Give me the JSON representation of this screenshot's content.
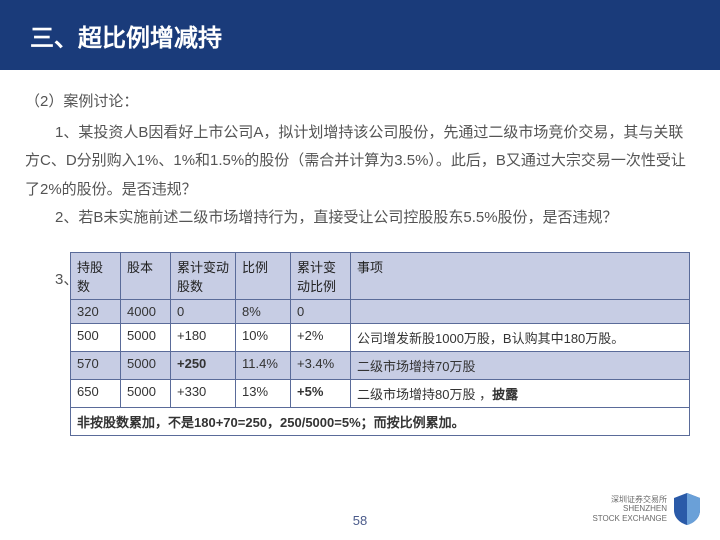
{
  "header": {
    "title": "三、超比例增减持"
  },
  "body": {
    "subheading": "（2）案例讨论：",
    "p1": "1、某投资人B因看好上市公司A，拟计划增持该公司股份，先通过二级市场竞价交易，其与关联方C、D分别购入1%、1%和1.5%的股份（需合并计算为3.5%）。此后，B又通过大宗交易一次性受让了2%的股份。是否违规？",
    "p2": "2、若B未实施前述二级市场增持行为，直接受让公司控股股东5.5%股份，是否违规？",
    "p3": "3、"
  },
  "table": {
    "headers": [
      "持股数",
      "股本",
      "累计变动股数",
      "比例",
      "累计变动比例",
      "事项"
    ],
    "rows": [
      {
        "alt": true,
        "cells": [
          "320",
          "4000",
          "0",
          "8%",
          "0",
          ""
        ],
        "bold": []
      },
      {
        "alt": false,
        "cells": [
          "500",
          "5000",
          "+180",
          "10%",
          "+2%",
          "公司增发新股1000万股，B认购其中180万股。"
        ],
        "bold": []
      },
      {
        "alt": true,
        "cells": [
          "570",
          "5000",
          "+250",
          "11.4%",
          "+3.4%",
          "二级市场增持70万股"
        ],
        "bold": [
          2
        ]
      },
      {
        "alt": false,
        "cells": [
          "650",
          "5000",
          "+330",
          "13%",
          "+5%",
          "二级市场增持80万股 ，披露"
        ],
        "bold": [
          4
        ],
        "boldWords": [
          "披露"
        ]
      }
    ],
    "footer": "非按股数累加，不是180+70=250，250/5000=5%；而按比例累加。"
  },
  "page_number": "58",
  "logo": {
    "line1": "深圳证券交易所",
    "line2": "SHENZHEN",
    "line3": "STOCK EXCHANGE"
  },
  "colors": {
    "header_bg": "#1a3b7a",
    "th_bg": "#c7cde4",
    "border": "#5a6b99",
    "body_text": "#545454"
  }
}
